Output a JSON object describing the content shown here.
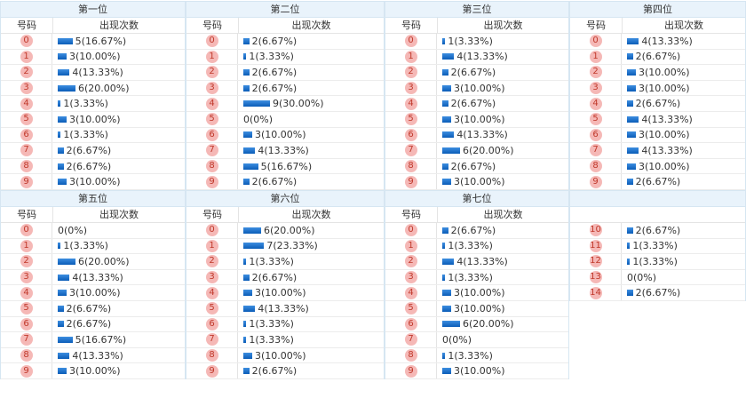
{
  "header_label": {
    "number": "号码",
    "count": "出现次数"
  },
  "panels": [
    {
      "title": "第一位",
      "rows": [
        {
          "n": "0",
          "v": "5(16.67%)",
          "p": 16.67
        },
        {
          "n": "1",
          "v": "3(10.00%)",
          "p": 10
        },
        {
          "n": "2",
          "v": "4(13.33%)",
          "p": 13.33
        },
        {
          "n": "3",
          "v": "6(20.00%)",
          "p": 20
        },
        {
          "n": "4",
          "v": "1(3.33%)",
          "p": 3.33
        },
        {
          "n": "5",
          "v": "3(10.00%)",
          "p": 10
        },
        {
          "n": "6",
          "v": "1(3.33%)",
          "p": 3.33
        },
        {
          "n": "7",
          "v": "2(6.67%)",
          "p": 6.67
        },
        {
          "n": "8",
          "v": "2(6.67%)",
          "p": 6.67
        },
        {
          "n": "9",
          "v": "3(10.00%)",
          "p": 10
        }
      ]
    },
    {
      "title": "第二位",
      "rows": [
        {
          "n": "0",
          "v": "2(6.67%)",
          "p": 6.67
        },
        {
          "n": "1",
          "v": "1(3.33%)",
          "p": 3.33
        },
        {
          "n": "2",
          "v": "2(6.67%)",
          "p": 6.67
        },
        {
          "n": "3",
          "v": "2(6.67%)",
          "p": 6.67
        },
        {
          "n": "4",
          "v": "9(30.00%)",
          "p": 30
        },
        {
          "n": "5",
          "v": "0(0%)",
          "p": 0
        },
        {
          "n": "6",
          "v": "3(10.00%)",
          "p": 10
        },
        {
          "n": "7",
          "v": "4(13.33%)",
          "p": 13.33
        },
        {
          "n": "8",
          "v": "5(16.67%)",
          "p": 16.67
        },
        {
          "n": "9",
          "v": "2(6.67%)",
          "p": 6.67
        }
      ]
    },
    {
      "title": "第三位",
      "rows": [
        {
          "n": "0",
          "v": "1(3.33%)",
          "p": 3.33
        },
        {
          "n": "1",
          "v": "4(13.33%)",
          "p": 13.33
        },
        {
          "n": "2",
          "v": "2(6.67%)",
          "p": 6.67
        },
        {
          "n": "3",
          "v": "3(10.00%)",
          "p": 10
        },
        {
          "n": "4",
          "v": "2(6.67%)",
          "p": 6.67
        },
        {
          "n": "5",
          "v": "3(10.00%)",
          "p": 10
        },
        {
          "n": "6",
          "v": "4(13.33%)",
          "p": 13.33
        },
        {
          "n": "7",
          "v": "6(20.00%)",
          "p": 20
        },
        {
          "n": "8",
          "v": "2(6.67%)",
          "p": 6.67
        },
        {
          "n": "9",
          "v": "3(10.00%)",
          "p": 10
        }
      ]
    },
    {
      "title": "第四位",
      "rows": [
        {
          "n": "0",
          "v": "4(13.33%)",
          "p": 13.33
        },
        {
          "n": "1",
          "v": "2(6.67%)",
          "p": 6.67
        },
        {
          "n": "2",
          "v": "3(10.00%)",
          "p": 10
        },
        {
          "n": "3",
          "v": "3(10.00%)",
          "p": 10
        },
        {
          "n": "4",
          "v": "2(6.67%)",
          "p": 6.67
        },
        {
          "n": "5",
          "v": "4(13.33%)",
          "p": 13.33
        },
        {
          "n": "6",
          "v": "3(10.00%)",
          "p": 10
        },
        {
          "n": "7",
          "v": "4(13.33%)",
          "p": 13.33
        },
        {
          "n": "8",
          "v": "3(10.00%)",
          "p": 10
        },
        {
          "n": "9",
          "v": "2(6.67%)",
          "p": 6.67
        }
      ]
    },
    {
      "title": "第五位",
      "rows": [
        {
          "n": "0",
          "v": "0(0%)",
          "p": 0
        },
        {
          "n": "1",
          "v": "1(3.33%)",
          "p": 3.33
        },
        {
          "n": "2",
          "v": "6(20.00%)",
          "p": 20
        },
        {
          "n": "3",
          "v": "4(13.33%)",
          "p": 13.33
        },
        {
          "n": "4",
          "v": "3(10.00%)",
          "p": 10
        },
        {
          "n": "5",
          "v": "2(6.67%)",
          "p": 6.67
        },
        {
          "n": "6",
          "v": "2(6.67%)",
          "p": 6.67
        },
        {
          "n": "7",
          "v": "5(16.67%)",
          "p": 16.67
        },
        {
          "n": "8",
          "v": "4(13.33%)",
          "p": 13.33
        },
        {
          "n": "9",
          "v": "3(10.00%)",
          "p": 10
        }
      ]
    },
    {
      "title": "第六位",
      "rows": [
        {
          "n": "0",
          "v": "6(20.00%)",
          "p": 20
        },
        {
          "n": "1",
          "v": "7(23.33%)",
          "p": 23.33
        },
        {
          "n": "2",
          "v": "1(3.33%)",
          "p": 3.33
        },
        {
          "n": "3",
          "v": "2(6.67%)",
          "p": 6.67
        },
        {
          "n": "4",
          "v": "3(10.00%)",
          "p": 10
        },
        {
          "n": "5",
          "v": "4(13.33%)",
          "p": 13.33
        },
        {
          "n": "6",
          "v": "1(3.33%)",
          "p": 3.33
        },
        {
          "n": "7",
          "v": "1(3.33%)",
          "p": 3.33
        },
        {
          "n": "8",
          "v": "3(10.00%)",
          "p": 10
        },
        {
          "n": "9",
          "v": "2(6.67%)",
          "p": 6.67
        }
      ]
    },
    {
      "title": "第七位",
      "rows": [
        {
          "n": "0",
          "v": "2(6.67%)",
          "p": 6.67
        },
        {
          "n": "1",
          "v": "1(3.33%)",
          "p": 3.33
        },
        {
          "n": "2",
          "v": "4(13.33%)",
          "p": 13.33
        },
        {
          "n": "3",
          "v": "1(3.33%)",
          "p": 3.33
        },
        {
          "n": "4",
          "v": "3(10.00%)",
          "p": 10
        },
        {
          "n": "5",
          "v": "3(10.00%)",
          "p": 10
        },
        {
          "n": "6",
          "v": "6(20.00%)",
          "p": 20
        },
        {
          "n": "7",
          "v": "0(0%)",
          "p": 0
        },
        {
          "n": "8",
          "v": "1(3.33%)",
          "p": 3.33
        },
        {
          "n": "9",
          "v": "3(10.00%)",
          "p": 10
        }
      ]
    },
    {
      "title": "",
      "no_header": true,
      "rows": [
        {
          "n": "10",
          "v": "2(6.67%)",
          "p": 6.67
        },
        {
          "n": "11",
          "v": "1(3.33%)",
          "p": 3.33
        },
        {
          "n": "12",
          "v": "1(3.33%)",
          "p": 3.33
        },
        {
          "n": "13",
          "v": "0(0%)",
          "p": 0
        },
        {
          "n": "14",
          "v": "2(6.67%)",
          "p": 6.67
        }
      ]
    }
  ]
}
